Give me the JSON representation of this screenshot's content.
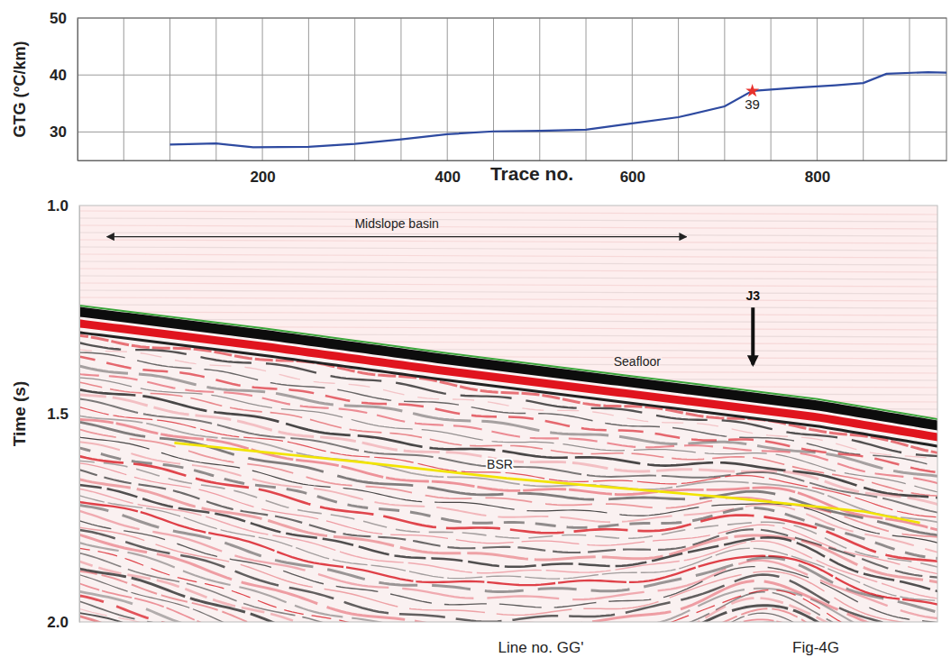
{
  "chart_data": [
    {
      "type": "line",
      "xlabel": "Trace no.",
      "ylabel": "GTG (°C/km)",
      "x": [
        100,
        150,
        190,
        250,
        300,
        350,
        400,
        450,
        500,
        550,
        600,
        650,
        700,
        730,
        780,
        820,
        850,
        875,
        920,
        940
      ],
      "values": [
        27.8,
        28.0,
        27.3,
        27.4,
        27.9,
        28.7,
        29.6,
        30.1,
        30.2,
        30.4,
        31.5,
        32.6,
        34.5,
        37.2,
        37.8,
        38.2,
        38.6,
        40.2,
        40.5,
        40.4
      ],
      "color": "#2e4aa0",
      "xlim": [
        0,
        940
      ],
      "ylim": [
        25,
        50
      ],
      "xticks": [
        {
          "value": 50,
          "label": null
        },
        {
          "value": 100,
          "label": null
        },
        {
          "value": 150,
          "label": null
        },
        200,
        {
          "value": 250,
          "label": null
        },
        {
          "value": 300,
          "label": null
        },
        {
          "value": 350,
          "label": null
        },
        400,
        {
          "value": 450,
          "label": null
        },
        {
          "value": 500,
          "label": null
        },
        {
          "value": 550,
          "label": null
        },
        600,
        {
          "value": 650,
          "label": null
        },
        {
          "value": 700,
          "label": null
        },
        {
          "value": 750,
          "label": null
        },
        800,
        {
          "value": 850,
          "label": null
        },
        {
          "value": 900,
          "label": null
        }
      ],
      "yticks": [
        30,
        40,
        50
      ],
      "grid": true,
      "annotations": [
        {
          "text": "39",
          "x": 730,
          "y": 37.2,
          "marker": "star",
          "color": "#e8322d"
        }
      ]
    },
    {
      "type": "seismic",
      "ylabel": "Time (s)",
      "xlim": [
        0,
        930
      ],
      "ylim": [
        1.0,
        2.0
      ],
      "yticks": [
        {
          "value": 1.0,
          "label": "1.0"
        },
        {
          "value": 1.5,
          "label": "1.5"
        },
        {
          "value": 2.0,
          "label": "2.0"
        }
      ],
      "tick_labels": "y",
      "series": [
        {
          "name": "Seafloor",
          "color": "#3aa53a",
          "x": [
            0,
            200,
            400,
            600,
            800,
            930
          ],
          "values": [
            1.24,
            1.295,
            1.355,
            1.41,
            1.465,
            1.513
          ]
        },
        {
          "name": "BSR",
          "color": "#f2e400",
          "x": [
            103,
            300,
            463,
            697,
            850,
            911
          ],
          "values": [
            1.57,
            1.615,
            1.655,
            1.7,
            1.735,
            1.762
          ]
        }
      ],
      "annotations": [
        {
          "text": "Midslope basin",
          "x": [
            30,
            658
          ],
          "y": 1.075
        },
        {
          "text": "J3",
          "x": 730,
          "y": [
            1.245,
            1.395
          ]
        }
      ],
      "footer": [
        "Line no. GG'",
        "Fig-4G"
      ]
    }
  ]
}
